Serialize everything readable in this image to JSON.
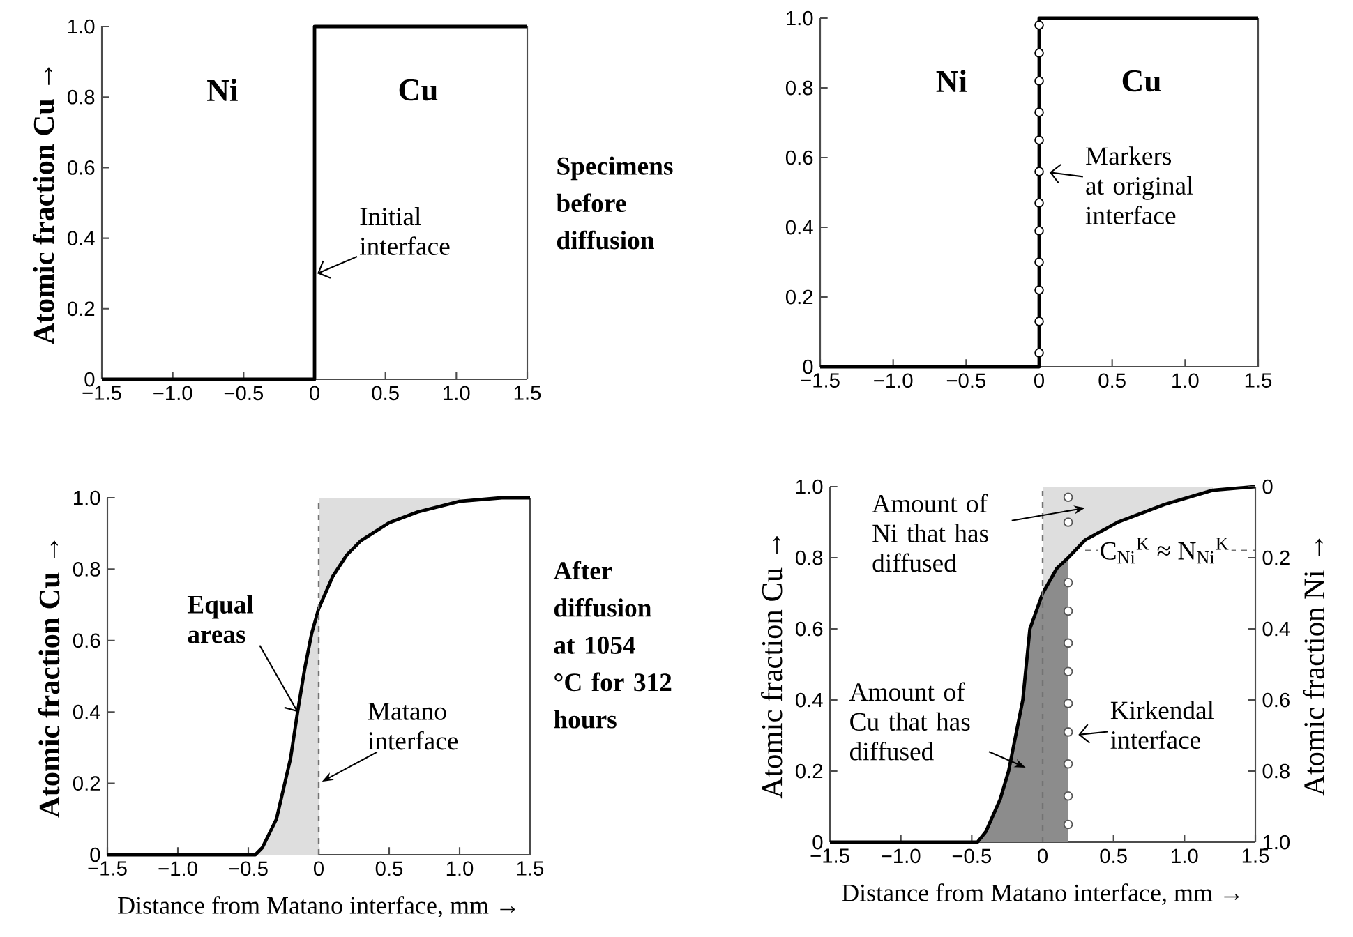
{
  "chart_data": [
    {
      "type": "line",
      "ylabel": "Atomic fraction Cu →",
      "xlim": [
        -1.5,
        1.5
      ],
      "ylim": [
        0,
        1
      ],
      "xticks": [
        {
          "value": -1.5,
          "label": "−1.5"
        },
        {
          "value": -1.0,
          "label": "−1.0"
        },
        {
          "value": -0.5,
          "label": "−0.5"
        },
        {
          "value": 0,
          "label": "0"
        },
        {
          "value": 0.5,
          "label": "0.5"
        },
        {
          "value": 1.0,
          "label": "1.0"
        },
        {
          "value": 1.5,
          "label": "1.5"
        }
      ],
      "yticks": [
        {
          "value": 0,
          "label": "0"
        },
        {
          "value": 0.2,
          "label": "0.2"
        },
        {
          "value": 0.4,
          "label": "0.4"
        },
        {
          "value": 0.6,
          "label": "0.6"
        },
        {
          "value": 0.8,
          "label": "0.8"
        },
        {
          "value": 1.0,
          "label": "1.0"
        }
      ],
      "series": [
        {
          "type": "line",
          "color": "#000000",
          "x": [
            -1.5,
            0,
            0,
            1.5
          ],
          "values": [
            0,
            0,
            1,
            1
          ]
        }
      ],
      "annotations": [
        "Ni",
        "Cu",
        {
          "text": "Initial interface",
          "x": 0.02,
          "y": 0.3
        },
        "Specimens before diffusion"
      ]
    },
    {
      "type": "line",
      "xlim": [
        -1.5,
        1.5
      ],
      "ylim": [
        0,
        1
      ],
      "xticks": [
        {
          "value": -1.5,
          "label": "−1.5"
        },
        {
          "value": -1.0,
          "label": "−1.0"
        },
        {
          "value": -0.5,
          "label": "−0.5"
        },
        {
          "value": 0,
          "label": "0"
        },
        {
          "value": 0.5,
          "label": "0.5"
        },
        {
          "value": 1.0,
          "label": "1.0"
        },
        {
          "value": 1.5,
          "label": "1.5"
        }
      ],
      "yticks": [
        {
          "value": 0,
          "label": "0"
        },
        {
          "value": 0.2,
          "label": "0.2"
        },
        {
          "value": 0.4,
          "label": "0.4"
        },
        {
          "value": 0.6,
          "label": "0.6"
        },
        {
          "value": 0.8,
          "label": "0.8"
        },
        {
          "value": 1.0,
          "label": "1.0"
        }
      ],
      "series": [
        {
          "type": "line",
          "color": "#000000",
          "x": [
            -1.5,
            0,
            0,
            1.5
          ],
          "values": [
            0,
            0,
            1,
            1
          ]
        },
        {
          "type": "scatter",
          "marker": "circle",
          "color": "#000000",
          "x": [
            0,
            0,
            0,
            0,
            0,
            0,
            0,
            0,
            0,
            0,
            0,
            0
          ],
          "values": [
            0.98,
            0.9,
            0.82,
            0.73,
            0.65,
            0.56,
            0.47,
            0.39,
            0.3,
            0.22,
            0.13,
            0.04
          ]
        }
      ],
      "annotations": [
        "Ni",
        "Cu",
        {
          "text": "Markers at original interface",
          "x": 0.02,
          "y": 0.56
        }
      ]
    },
    {
      "type": "line",
      "subtitle": "After diffusion at 1054 °C for 312 hours",
      "ylabel": "Atomic fraction Cu →",
      "xlabel": "Distance from Matano interface, mm →",
      "xlim": [
        -1.5,
        1.5
      ],
      "ylim": [
        0,
        1
      ],
      "xticks": [
        {
          "value": -1.5,
          "label": "−1.5"
        },
        {
          "value": -1.0,
          "label": "−1.0"
        },
        {
          "value": -0.5,
          "label": "−0.5"
        },
        {
          "value": 0,
          "label": "0"
        },
        {
          "value": 0.5,
          "label": "0.5"
        },
        {
          "value": 1.0,
          "label": "1.0"
        },
        {
          "value": 1.5,
          "label": "1.5"
        }
      ],
      "yticks": [
        {
          "value": 0,
          "label": "0"
        },
        {
          "value": 0.2,
          "label": "0.2"
        },
        {
          "value": 0.4,
          "label": "0.4"
        },
        {
          "value": 0.6,
          "label": "0.6"
        },
        {
          "value": 0.8,
          "label": "0.8"
        },
        {
          "value": 1.0,
          "label": "1.0"
        }
      ],
      "series": [
        {
          "type": "line",
          "color": "#000000",
          "x": [
            -1.5,
            -0.45,
            -0.4,
            -0.3,
            -0.2,
            -0.15,
            -0.1,
            -0.05,
            0,
            0,
            0.1,
            0.2,
            0.3,
            0.5,
            0.7,
            1.0,
            1.3,
            1.5
          ],
          "values": [
            0,
            0,
            0.02,
            0.1,
            0.27,
            0.4,
            0.52,
            0.62,
            0.69,
            0.69,
            0.78,
            0.84,
            0.88,
            0.93,
            0.96,
            0.99,
            1.0,
            1.0
          ],
          "lower": [
            null,
            0,
            0,
            0,
            0,
            0,
            0,
            0,
            0,
            0.69,
            0.78,
            0.84,
            0.88,
            0.93,
            0.96,
            0.99,
            null,
            null
          ],
          "upper": [
            null,
            0,
            0.02,
            0.1,
            0.27,
            0.4,
            0.52,
            0.62,
            0.69,
            1,
            1,
            1,
            1,
            1,
            1,
            1,
            null,
            null
          ]
        }
      ],
      "ref_lines": [
        {
          "axis": "x",
          "value": 0,
          "label": "Matano interface",
          "line_style": "dashed"
        }
      ],
      "annotations": [
        {
          "text": "Equal areas",
          "x": -0.15,
          "y": 0.4
        }
      ]
    },
    {
      "type": "line",
      "ylabel": "Atomic fraction Cu →",
      "xlabel": "Distance from Matano interface, mm →",
      "y2label": "Atomic fraction Ni →",
      "xlim": [
        -1.5,
        1.5
      ],
      "ylim": [
        0,
        1
      ],
      "y2lim": [
        1,
        0
      ],
      "xticks": [
        {
          "value": -1.5,
          "label": "−1.5"
        },
        {
          "value": -1.0,
          "label": "−1.0"
        },
        {
          "value": -0.5,
          "label": "−0.5"
        },
        {
          "value": 0,
          "label": "0"
        },
        {
          "value": 0.5,
          "label": "0.5"
        },
        {
          "value": 1.0,
          "label": "1.0"
        },
        {
          "value": 1.5,
          "label": "1.5"
        }
      ],
      "yticks": [
        {
          "value": 0,
          "label": "0"
        },
        {
          "value": 0.2,
          "label": "0.2"
        },
        {
          "value": 0.4,
          "label": "0.4"
        },
        {
          "value": 0.6,
          "label": "0.6"
        },
        {
          "value": 0.8,
          "label": "0.8"
        },
        {
          "value": 1.0,
          "label": "1.0"
        }
      ],
      "y2ticks": [
        {
          "value": 0,
          "label": "0"
        },
        {
          "value": 0.2,
          "label": "0.2"
        },
        {
          "value": 0.4,
          "label": "0.4"
        },
        {
          "value": 0.6,
          "label": "0.6"
        },
        {
          "value": 0.8,
          "label": "0.8"
        },
        {
          "value": 1.0,
          "label": "1.0"
        }
      ],
      "series": [
        {
          "type": "area",
          "color": "#8c8c8c",
          "x": [
            -0.46,
            -0.4,
            -0.3,
            -0.24,
            -0.14,
            -0.09,
            0,
            0.1,
            0.18
          ],
          "values": [
            0,
            0.03,
            0.12,
            0.2,
            0.4,
            0.6,
            0.7,
            0.77,
            0.8
          ]
        },
        {
          "type": "line",
          "color": "#000000",
          "x": [
            -1.5,
            -0.46,
            -0.4,
            -0.3,
            -0.24,
            -0.14,
            -0.09,
            0,
            0.1,
            0.18,
            0.3,
            0.53,
            0.86,
            1.2,
            1.5
          ],
          "values": [
            0,
            0,
            0.03,
            0.12,
            0.2,
            0.4,
            0.6,
            0.7,
            0.77,
            0.8,
            0.85,
            0.9,
            0.95,
            0.99,
            1.0
          ],
          "lower": [
            null,
            null,
            null,
            null,
            null,
            null,
            null,
            0.7,
            0.77,
            0.8,
            0.85,
            0.9,
            0.95,
            0.99,
            null
          ],
          "upper": [
            null,
            null,
            null,
            null,
            null,
            null,
            null,
            1,
            1,
            1,
            1,
            1,
            1,
            1,
            null
          ]
        },
        {
          "type": "scatter",
          "marker": "circle",
          "color": "#555555",
          "x": [
            0.18,
            0.18,
            0.18,
            0.18,
            0.18,
            0.18,
            0.18,
            0.18,
            0.18,
            0.18,
            0.18
          ],
          "values": [
            0.97,
            0.9,
            0.73,
            0.65,
            0.56,
            0.48,
            0.39,
            0.31,
            0.22,
            0.13,
            0.05
          ]
        }
      ],
      "ref_lines": [
        {
          "axis": "x",
          "value": 0,
          "line_style": "dashed"
        },
        {
          "axis": "y",
          "value": 0.82,
          "label": "C$_{Ni}$$^{K}$ ≈ N$_{Ni}$$^{K}$",
          "line_style": "dashed"
        }
      ],
      "annotations": [
        "Amount of Ni that has diffused",
        "Amount of Cu that has diffused",
        {
          "text": "Kirkendal interface",
          "x": 0.2,
          "y": 0.3
        }
      ]
    }
  ]
}
